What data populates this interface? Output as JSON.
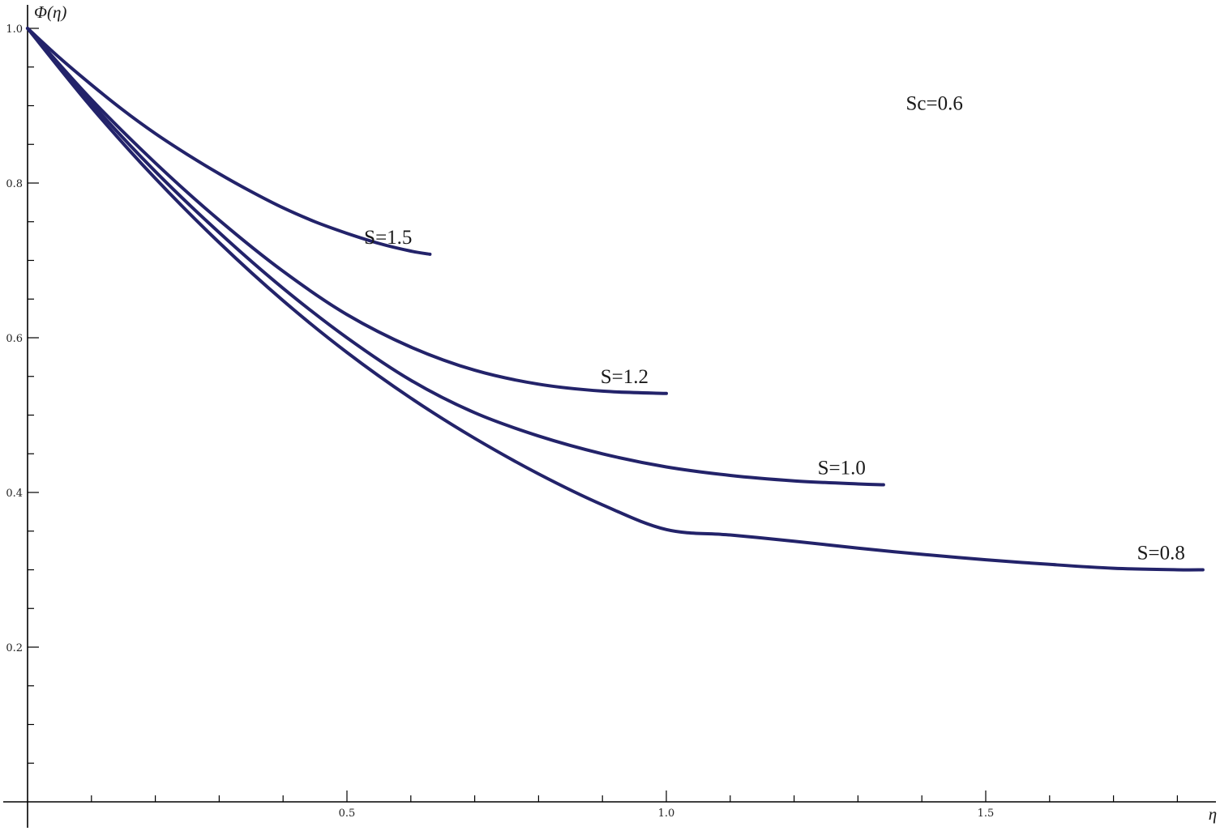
{
  "chart_data": {
    "type": "line",
    "title": "",
    "xlabel": "η",
    "ylabel": "Φ(η)",
    "xlim": [
      0,
      1.85
    ],
    "ylim": [
      0,
      1.0
    ],
    "x_ticks": [
      0.5,
      1.0,
      1.5
    ],
    "x_tick_labels": [
      "0.5",
      "1.0",
      "1.5"
    ],
    "x_minor_step": 0.1,
    "y_ticks": [
      0.2,
      0.4,
      0.6,
      0.8,
      1.0
    ],
    "y_tick_labels": [
      "0.2",
      "0.4",
      "0.6",
      "0.8",
      "1.0"
    ],
    "y_minor_step": 0.05,
    "grid": false,
    "line_color": "#23236a",
    "annotation": "Sc=0.6",
    "series": [
      {
        "name": "S=1.5",
        "x": [
          0,
          0.05,
          0.1,
          0.15,
          0.2,
          0.25,
          0.3,
          0.35,
          0.4,
          0.45,
          0.5,
          0.55,
          0.6,
          0.63
        ],
        "y": [
          1.0,
          0.962,
          0.927,
          0.894,
          0.864,
          0.837,
          0.812,
          0.789,
          0.768,
          0.75,
          0.735,
          0.722,
          0.712,
          0.708
        ]
      },
      {
        "name": "S=1.2",
        "x": [
          0,
          0.1,
          0.2,
          0.3,
          0.4,
          0.5,
          0.6,
          0.7,
          0.8,
          0.9,
          1.0
        ],
        "y": [
          1.0,
          0.908,
          0.826,
          0.752,
          0.686,
          0.63,
          0.588,
          0.558,
          0.54,
          0.531,
          0.528
        ]
      },
      {
        "name": "S=1.0",
        "x": [
          0,
          0.1,
          0.2,
          0.3,
          0.4,
          0.5,
          0.6,
          0.7,
          0.8,
          0.9,
          1.0,
          1.1,
          1.2,
          1.3,
          1.34
        ],
        "y": [
          1.0,
          0.903,
          0.815,
          0.736,
          0.664,
          0.6,
          0.545,
          0.503,
          0.473,
          0.45,
          0.433,
          0.422,
          0.415,
          0.411,
          0.41
        ]
      },
      {
        "name": "S=0.8",
        "x": [
          0,
          0.1,
          0.2,
          0.3,
          0.4,
          0.5,
          0.6,
          0.7,
          0.8,
          0.9,
          1.0,
          1.1,
          1.2,
          1.3,
          1.4,
          1.5,
          1.6,
          1.7,
          1.8,
          1.84
        ],
        "y": [
          1.0,
          0.898,
          0.806,
          0.723,
          0.648,
          0.581,
          0.522,
          0.47,
          0.424,
          0.384,
          0.352,
          0.345,
          0.337,
          0.328,
          0.32,
          0.313,
          0.307,
          0.302,
          0.3,
          0.3
        ]
      }
    ]
  }
}
